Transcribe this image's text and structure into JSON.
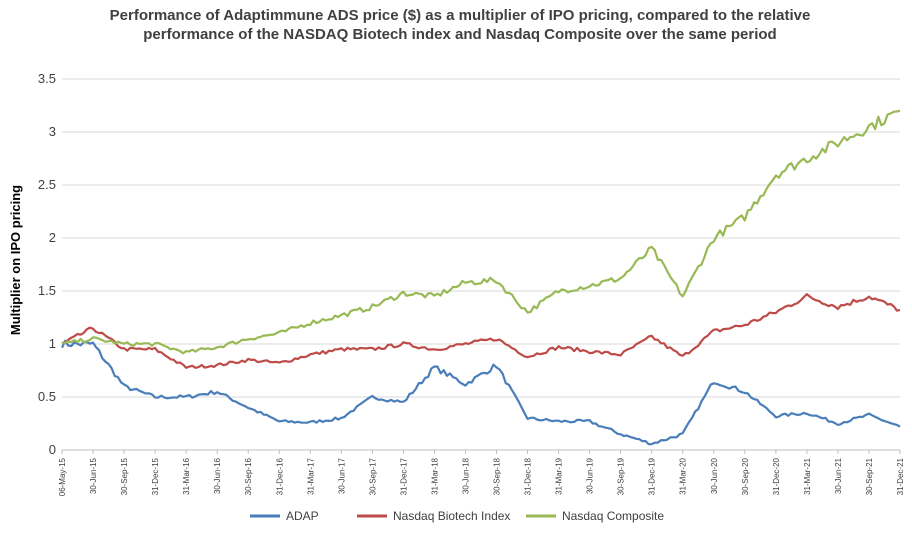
{
  "chart_data": {
    "type": "line",
    "title_line1": "Performance of Adaptimmune ADS price ($) as a multiplier of IPO pricing, compared to the relative",
    "title_line2": "performance of the NASDAQ Biotech index and Nasdaq Composite over the same period",
    "xlabel": "",
    "ylabel": "Multiplier on IPO pricing",
    "ylim": [
      0,
      3.5
    ],
    "y_ticks": [
      "0",
      "0.5",
      "1",
      "1.5",
      "2",
      "2.5",
      "3",
      "3.5"
    ],
    "grid": true,
    "legend_position": "bottom",
    "x_tick_labels": [
      "06-May-15",
      "30-Jun-15",
      "30-Sep-15",
      "31-Dec-15",
      "31-Mar-16",
      "30-Jun-16",
      "30-Sep-16",
      "31-Dec-16",
      "31-Mar-17",
      "30-Jun-17",
      "30-Sep-17",
      "31-Dec-17",
      "31-Mar-18",
      "30-Jun-18",
      "30-Sep-18",
      "31-Dec-18",
      "31-Mar-19",
      "30-Jun-19",
      "30-Sep-19",
      "31-Dec-19",
      "31-Mar-20",
      "30-Jun-20",
      "30-Sep-20",
      "31-Dec-20",
      "31-Mar-21",
      "30-Jun-21",
      "30-Sep-21",
      "31-Dec-21"
    ],
    "x": [
      "06-May-15",
      "30-Jun-15",
      "30-Sep-15",
      "31-Dec-15",
      "31-Mar-16",
      "30-Jun-16",
      "30-Sep-16",
      "31-Dec-16",
      "31-Mar-17",
      "30-Jun-17",
      "30-Sep-17",
      "31-Dec-17",
      "31-Mar-18",
      "30-Jun-18",
      "30-Sep-18",
      "31-Dec-18",
      "31-Mar-19",
      "30-Jun-19",
      "30-Sep-19",
      "31-Dec-19",
      "31-Mar-20",
      "30-Jun-20",
      "30-Sep-20",
      "31-Dec-20",
      "31-Mar-21",
      "30-Jun-21",
      "30-Sep-21",
      "31-Dec-21"
    ],
    "series": [
      {
        "name": "ADAP",
        "color": "#4a7ebb",
        "values": [
          1.0,
          1.0,
          0.6,
          0.5,
          0.5,
          0.55,
          0.4,
          0.27,
          0.26,
          0.3,
          0.5,
          0.45,
          0.78,
          0.62,
          0.8,
          0.3,
          0.27,
          0.27,
          0.15,
          0.06,
          0.15,
          0.65,
          0.55,
          0.32,
          0.35,
          0.25,
          0.33,
          0.22
        ]
      },
      {
        "name": "Nasdaq Biotech Index",
        "color": "#be4b48",
        "values": [
          1.0,
          1.15,
          0.95,
          0.95,
          0.78,
          0.8,
          0.85,
          0.82,
          0.9,
          0.95,
          0.95,
          1.0,
          0.95,
          1.0,
          1.05,
          0.88,
          0.97,
          0.93,
          0.9,
          1.07,
          0.88,
          1.12,
          1.18,
          1.3,
          1.45,
          1.35,
          1.45,
          1.32
        ]
      },
      {
        "name": "Nasdaq Composite",
        "color": "#98b954",
        "values": [
          1.0,
          1.05,
          1.0,
          1.0,
          0.92,
          0.97,
          1.05,
          1.1,
          1.2,
          1.27,
          1.35,
          1.48,
          1.45,
          1.58,
          1.6,
          1.3,
          1.5,
          1.55,
          1.62,
          1.9,
          1.45,
          2.0,
          2.2,
          2.6,
          2.75,
          2.9,
          3.05,
          3.2
        ]
      }
    ]
  }
}
